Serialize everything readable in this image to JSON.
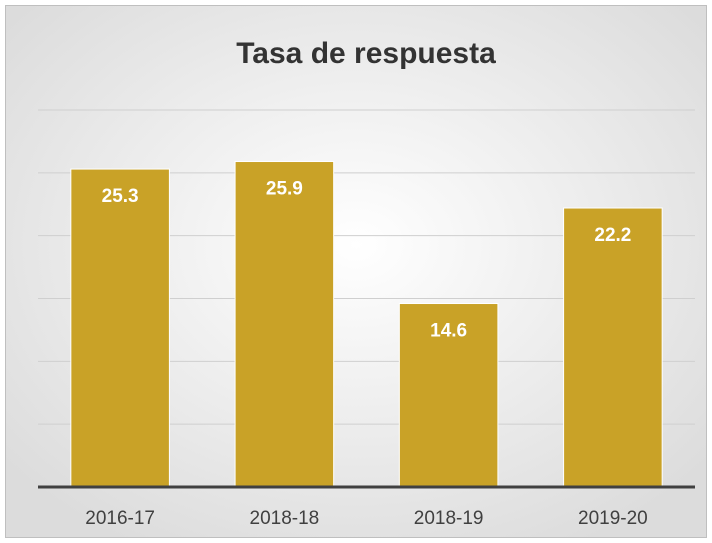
{
  "chart_data": {
    "type": "bar",
    "title": "Tasa de respuesta",
    "categories": [
      "2016-17",
      "2018-18",
      "2018-19",
      "2019-20"
    ],
    "values": [
      25.3,
      25.9,
      14.6,
      22.2
    ],
    "color": "#c9a227",
    "ylim": [
      0,
      30
    ],
    "yticks": [
      0,
      5,
      10,
      15,
      20,
      25,
      30
    ],
    "grid": true
  }
}
